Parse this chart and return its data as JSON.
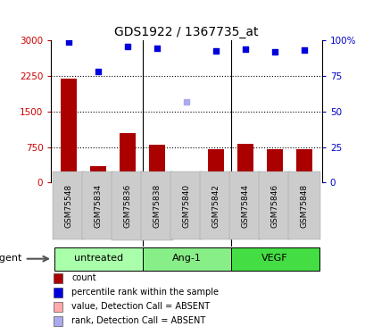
{
  "title": "GDS1922 / 1367735_at",
  "samples": [
    "GSM75548",
    "GSM75834",
    "GSM75836",
    "GSM75838",
    "GSM75840",
    "GSM75842",
    "GSM75844",
    "GSM75846",
    "GSM75848"
  ],
  "bar_values": [
    2200,
    350,
    1050,
    800,
    130,
    700,
    820,
    700,
    700
  ],
  "bar_colors": [
    "#aa0000",
    "#aa0000",
    "#aa0000",
    "#aa0000",
    "#ffaaaa",
    "#aa0000",
    "#aa0000",
    "#aa0000",
    "#aa0000"
  ],
  "rank_values": [
    2960,
    2350,
    2870,
    2840,
    1700,
    2770,
    2810,
    2760,
    2790
  ],
  "rank_colors": [
    "#0000dd",
    "#0000dd",
    "#0000dd",
    "#0000dd",
    "#aaaaee",
    "#0000dd",
    "#0000dd",
    "#0000dd",
    "#0000dd"
  ],
  "ylim_left": [
    0,
    3000
  ],
  "yticks_left": [
    0,
    750,
    1500,
    2250,
    3000
  ],
  "ytick_labels_left": [
    "0",
    "750",
    "1500",
    "2250",
    "3000"
  ],
  "yticks_right": [
    0,
    25,
    50,
    75,
    100
  ],
  "ytick_labels_right": [
    "0",
    "25",
    "50",
    "75",
    "100%"
  ],
  "hlines": [
    750,
    1500,
    2250
  ],
  "groups": [
    {
      "label": "untreated",
      "start": 0,
      "end": 3,
      "color": "#aaffaa"
    },
    {
      "label": "Ang-1",
      "start": 3,
      "end": 6,
      "color": "#88ee88"
    },
    {
      "label": "VEGF",
      "start": 6,
      "end": 9,
      "color": "#44dd44"
    }
  ],
  "agent_label": "agent",
  "legend_items": [
    {
      "color": "#aa0000",
      "label": "count"
    },
    {
      "color": "#0000dd",
      "label": "percentile rank within the sample"
    },
    {
      "color": "#ffaaaa",
      "label": "value, Detection Call = ABSENT"
    },
    {
      "color": "#aaaaee",
      "label": "rank, Detection Call = ABSENT"
    }
  ],
  "left_axis_color": "#cc0000",
  "right_axis_color": "#0000cc",
  "xticklabel_bg": "#cccccc",
  "group_border_color": "#000000",
  "hline_color": "#000000",
  "hline_lw": 0.8,
  "vline_color": "#000000",
  "vline_lw": 0.8
}
